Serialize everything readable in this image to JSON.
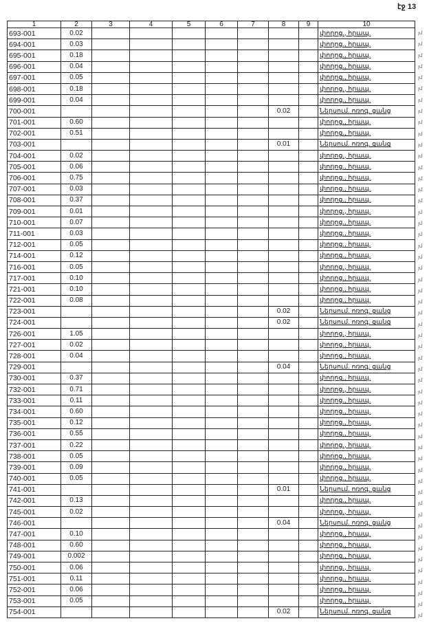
{
  "page_label": "էջ 13",
  "headers": [
    "1",
    "2",
    "3",
    "4",
    "5",
    "6",
    "7",
    "8",
    "9",
    "10"
  ],
  "street_label": "փողոց., հրապ.",
  "network_label": "Ներսում. ոռոգ. ցանց",
  "margin_mark": "յմ",
  "rows": [
    {
      "id": "693-001",
      "c2": "0.02",
      "c8": "",
      "c10": "փողոց., հրապ."
    },
    {
      "id": "694-001",
      "c2": "0.03",
      "c8": "",
      "c10": "փողոց., հրապ."
    },
    {
      "id": "695-001",
      "c2": "0.18",
      "c8": "",
      "c10": "փողոց., հրապ."
    },
    {
      "id": "696-001",
      "c2": "0.04",
      "c8": "",
      "c10": "փողոց., հրապ."
    },
    {
      "id": "697-001",
      "c2": "0.05",
      "c8": "",
      "c10": "փողոց., հրապ."
    },
    {
      "id": "698-001",
      "c2": "0.18",
      "c8": "",
      "c10": "փողոց., հրապ."
    },
    {
      "id": "699-001",
      "c2": "0.04",
      "c8": "",
      "c10": "փողոց., հրապ."
    },
    {
      "id": "700-001",
      "c2": "",
      "c8": "0.02",
      "c10": "Ներսում. ոռոգ. ցանց"
    },
    {
      "id": "701-001",
      "c2": "0.60",
      "c8": "",
      "c10": "փողոց., հրապ."
    },
    {
      "id": "702-001",
      "c2": "0.51",
      "c8": "",
      "c10": "փողոց., հրապ."
    },
    {
      "id": "703-001",
      "c2": "",
      "c8": "0.01",
      "c10": "Ներսում. ոռոգ. ցանց"
    },
    {
      "id": "704-001",
      "c2": "0.02",
      "c8": "",
      "c10": "փողոց., հրապ."
    },
    {
      "id": "705-001",
      "c2": "0.06",
      "c8": "",
      "c10": "փողոց., հրապ."
    },
    {
      "id": "706-001",
      "c2": "0.75",
      "c8": "",
      "c10": "փողոց., հրապ."
    },
    {
      "id": "707-001",
      "c2": "0.03",
      "c8": "",
      "c10": "փողոց., հրապ."
    },
    {
      "id": "708-001",
      "c2": "0.37",
      "c8": "",
      "c10": "փողոց., հրապ."
    },
    {
      "id": "709-001",
      "c2": "0.01",
      "c8": "",
      "c10": "փողոց., հրապ."
    },
    {
      "id": "710-001",
      "c2": "0.07",
      "c8": "",
      "c10": "փողոց., հրապ."
    },
    {
      "id": "711-001",
      "c2": "0.03",
      "c8": "",
      "c10": "փողոց., հրապ."
    },
    {
      "id": "712-001",
      "c2": "0.05",
      "c8": "",
      "c10": "փողոց., հրապ."
    },
    {
      "id": "714-001",
      "c2": "0.12",
      "c8": "",
      "c10": "փողոց., հրապ."
    },
    {
      "id": "716-001",
      "c2": "0.05",
      "c8": "",
      "c10": "փողոց., հրապ."
    },
    {
      "id": "717-001",
      "c2": "0.10",
      "c8": "",
      "c10": "փողոց., հրապ."
    },
    {
      "id": "721-001",
      "c2": "0.10",
      "c8": "",
      "c10": "փողոց., հրապ."
    },
    {
      "id": "722-001",
      "c2": "0.08",
      "c8": "",
      "c10": "փողոց., հրապ."
    },
    {
      "id": "723-001",
      "c2": "",
      "c8": "0.02",
      "c10": "Ներսում. ոռոգ. ցանց"
    },
    {
      "id": "724-001",
      "c2": "",
      "c8": "0.02",
      "c10": "Ներսում. ոռոգ. ցանց"
    },
    {
      "id": "726-001",
      "c2": "1.05",
      "c8": "",
      "c10": "փողոց., հրապ."
    },
    {
      "id": "727-001",
      "c2": "0.02",
      "c8": "",
      "c10": "փողոց., հրապ."
    },
    {
      "id": "728-001",
      "c2": "0.04",
      "c8": "",
      "c10": "փողոց., հրապ."
    },
    {
      "id": "729-001",
      "c2": "",
      "c8": "0.04",
      "c10": "Ներսում. ոռոգ. ցանց"
    },
    {
      "id": "730-001",
      "c2": "0.37",
      "c8": "",
      "c10": "փողոց., հրապ."
    },
    {
      "id": "732-001",
      "c2": "0.71",
      "c8": "",
      "c10": "փողոց., հրապ."
    },
    {
      "id": "733-001",
      "c2": "0.11",
      "c8": "",
      "c10": "փողոց., հրապ."
    },
    {
      "id": "734-001",
      "c2": "0.60",
      "c8": "",
      "c10": "փողոց., հրապ."
    },
    {
      "id": "735-001",
      "c2": "0.12",
      "c8": "",
      "c10": "փողոց., հրապ."
    },
    {
      "id": "736-001",
      "c2": "0.55",
      "c8": "",
      "c10": "փողոց., հրապ."
    },
    {
      "id": "737-001",
      "c2": "0.22",
      "c8": "",
      "c10": "փողոց., հրապ."
    },
    {
      "id": "738-001",
      "c2": "0.05",
      "c8": "",
      "c10": "փողոց., հրապ."
    },
    {
      "id": "739-001",
      "c2": "0.09",
      "c8": "",
      "c10": "փողոց., հրապ."
    },
    {
      "id": "740-001",
      "c2": "0.05",
      "c8": "",
      "c10": "փողոց., հրապ."
    },
    {
      "id": "741-001",
      "c2": "",
      "c8": "0.01",
      "c10": "Ներսում. ոռոգ. ցանց"
    },
    {
      "id": "742-001",
      "c2": "0.13",
      "c8": "",
      "c10": "փողոց., հրապ."
    },
    {
      "id": "745-001",
      "c2": "0.02",
      "c8": "",
      "c10": "փողոց., հրապ."
    },
    {
      "id": "746-001",
      "c2": "",
      "c8": "0.04",
      "c10": "Ներսում. ոռոգ. ցանց"
    },
    {
      "id": "747-001",
      "c2": "0.10",
      "c8": "",
      "c10": "փողոց., հրապ."
    },
    {
      "id": "748-001",
      "c2": "0.60",
      "c8": "",
      "c10": "փողոց., հրապ."
    },
    {
      "id": "749-001",
      "c2": "0.002",
      "c8": "",
      "c10": "փողոց., հրապ."
    },
    {
      "id": "750-001",
      "c2": "0.06",
      "c8": "",
      "c10": "փողոց., հրապ."
    },
    {
      "id": "751-001",
      "c2": "0.11",
      "c8": "",
      "c10": "փողոց., հրապ."
    },
    {
      "id": "752-001",
      "c2": "0.06",
      "c8": "",
      "c10": "փողոց., հրապ."
    },
    {
      "id": "753-001",
      "c2": "0.05",
      "c8": "",
      "c10": "փողոց., հրապ."
    },
    {
      "id": "754-001",
      "c2": "",
      "c8": "0.02",
      "c10": "Ներսում. ոռոգ. ցանց"
    }
  ]
}
